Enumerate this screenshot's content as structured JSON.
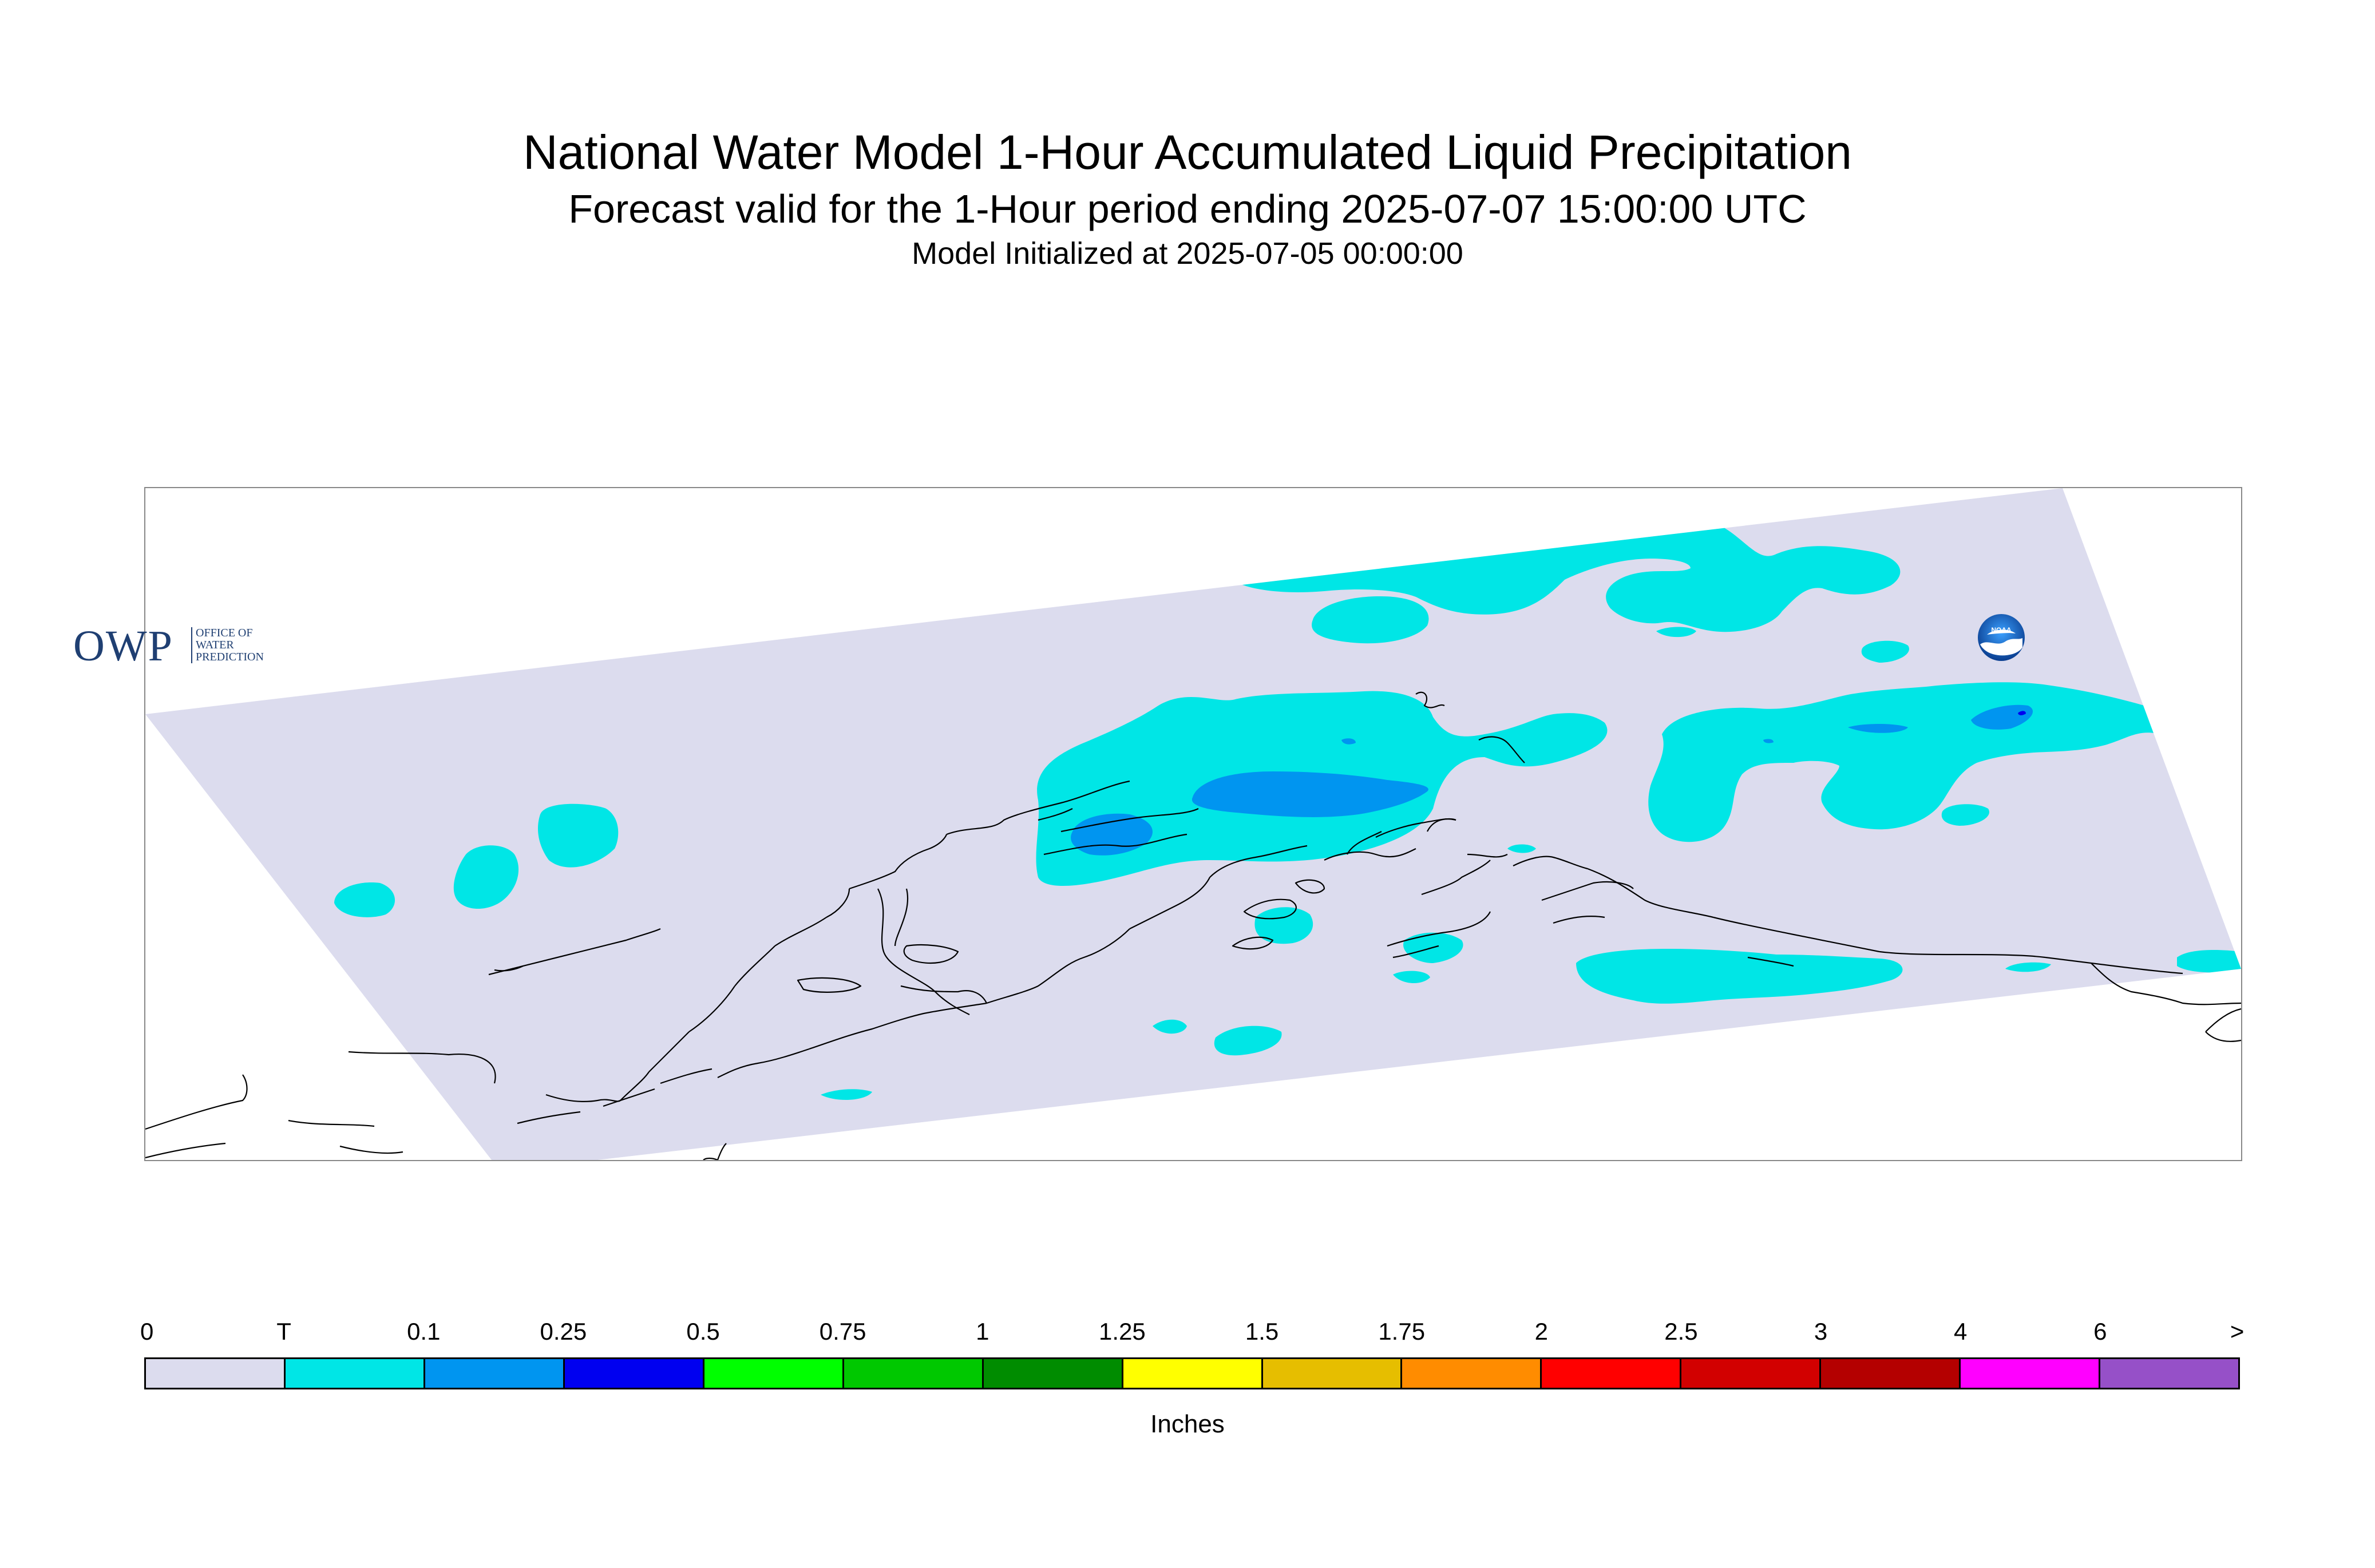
{
  "header": {
    "title": "National Water Model 1-Hour Accumulated Liquid Precipitation",
    "subtitle": "Forecast valid for the 1-Hour period ending 2025-07-07 15:00:00 UTC",
    "init": "Model Initialized at 2025-07-05 00:00:00"
  },
  "logos": {
    "owp_big": "OWP",
    "owp_small": "OFFICE OF WATER PREDICTION",
    "noaa": "NOAA"
  },
  "map": {
    "background_color": "#ffffff",
    "domain_color": "#dcdcee",
    "coastline_color": "#000000"
  },
  "legend": {
    "units": "Inches",
    "ticks": [
      "0",
      "T",
      "0.1",
      "0.25",
      "0.5",
      "0.75",
      "1",
      "1.25",
      "1.5",
      "1.75",
      "2",
      "2.5",
      "3",
      "4",
      "6",
      ">"
    ],
    "colors": [
      "#dcdcee",
      "#00e6e6",
      "#0095f0",
      "#0000f0",
      "#00ff00",
      "#00c800",
      "#008c00",
      "#ffff00",
      "#e6be00",
      "#ff8c00",
      "#ff0000",
      "#d20000",
      "#b40000",
      "#ff00ff",
      "#9650c8"
    ]
  }
}
